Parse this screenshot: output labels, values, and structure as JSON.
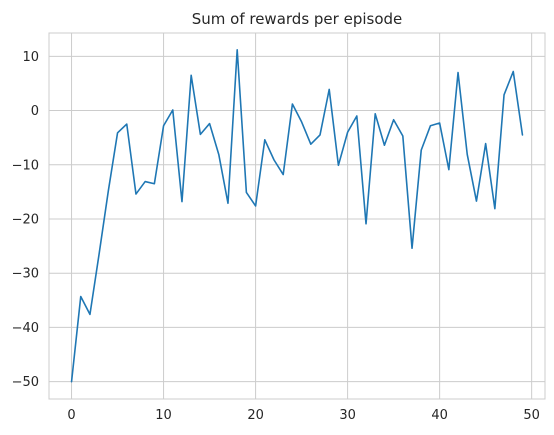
{
  "chart_data": {
    "type": "line",
    "title": "Sum of rewards per episode",
    "xlabel": "",
    "ylabel": "",
    "xlim": [
      -2.45,
      51.45
    ],
    "ylim": [
      -53.2,
      14.3
    ],
    "xticks": [
      0,
      10,
      20,
      30,
      40,
      50
    ],
    "yticks": [
      -50,
      -40,
      -30,
      -20,
      -10,
      0,
      10
    ],
    "xtick_labels": [
      "0",
      "10",
      "20",
      "30",
      "40",
      "50"
    ],
    "ytick_labels": [
      "−50",
      "−40",
      "−30",
      "−20",
      "−10",
      "0",
      "10"
    ],
    "grid": true,
    "legend": "none",
    "x": [
      0,
      1,
      2,
      3,
      4,
      5,
      6,
      7,
      8,
      9,
      10,
      11,
      12,
      13,
      14,
      15,
      16,
      17,
      18,
      19,
      20,
      21,
      22,
      23,
      24,
      25,
      26,
      27,
      28,
      29,
      30,
      31,
      32,
      33,
      34,
      35,
      36,
      37,
      38,
      39,
      40,
      41,
      42,
      43,
      44,
      45,
      46,
      47,
      48,
      49
    ],
    "series": [
      {
        "color": "#1f77b4",
        "values": [
          -50,
          -34.3,
          -37.6,
          -26.4,
          -14.8,
          -4.1,
          -2.5,
          -15.4,
          -13.1,
          -13.5,
          -2.8,
          0.1,
          -16.8,
          6.5,
          -4.4,
          -2.4,
          -8.1,
          -17.1,
          11.2,
          -15.1,
          -17.6,
          -5.4,
          -9.1,
          -11.8,
          1.2,
          -2.1,
          -6.2,
          -4.5,
          3.9,
          -10.1,
          -4.0,
          -1.0,
          -20.9,
          -0.6,
          -6.4,
          -1.7,
          -4.7,
          -25.4,
          -7.3,
          -2.8,
          -2.3,
          -10.9,
          7.0,
          -8.1,
          -16.7,
          -6.1,
          -18.1,
          2.9,
          7.2,
          -4.5
        ]
      }
    ]
  }
}
